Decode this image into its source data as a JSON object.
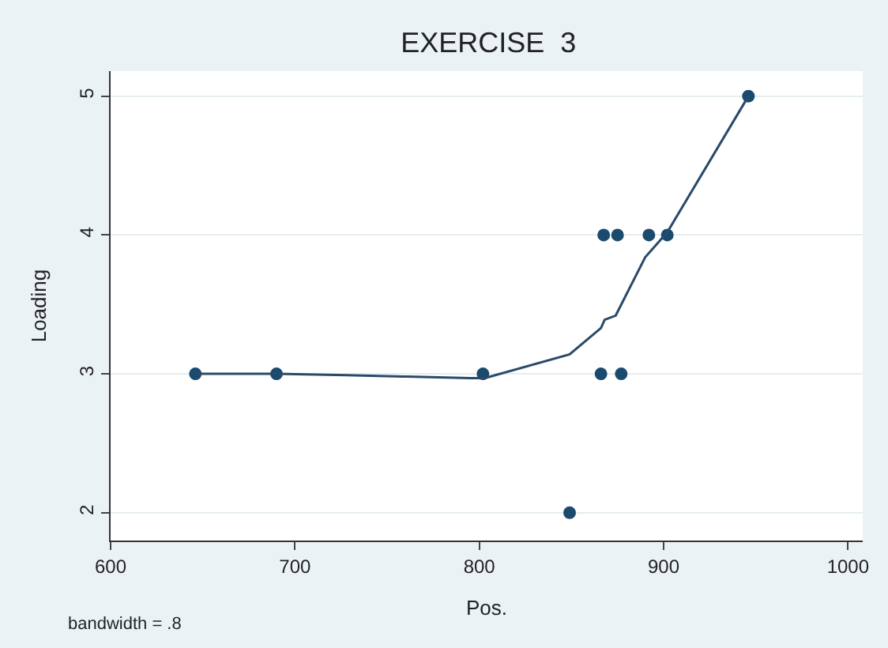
{
  "chart_data": {
    "type": "scatter",
    "title": "EXERCISE  3",
    "xlabel": "Pos.",
    "ylabel": "Loading",
    "annotations": [
      "bandwidth = .8"
    ],
    "series": [
      {
        "color": "#1a4a6e",
        "marker": "circle",
        "x": [
          646,
          690,
          802,
          849,
          866,
          877,
          867.5,
          875,
          892,
          902,
          946
        ],
        "values": [
          3,
          3,
          3,
          2,
          3,
          3,
          4,
          4,
          4,
          4,
          5
        ]
      },
      {
        "type": "line",
        "color": "#2a4a6a",
        "marker": "none",
        "x": [
          646,
          690,
          728,
          761,
          795,
          803,
          849,
          866,
          868,
          874,
          890,
          902,
          946
        ],
        "values": [
          3.0,
          3.0,
          2.99,
          2.98,
          2.97,
          2.97,
          3.14,
          3.33,
          3.39,
          3.42,
          3.84,
          4.02,
          5.0
        ]
      }
    ],
    "xlim": [
      600,
      1008
    ],
    "xticks": [
      600,
      700,
      800,
      900,
      1000
    ],
    "ylim": [
      1.8,
      5.18
    ],
    "yticks": [
      2,
      3,
      4,
      5
    ],
    "grid": "y",
    "legend": false
  }
}
